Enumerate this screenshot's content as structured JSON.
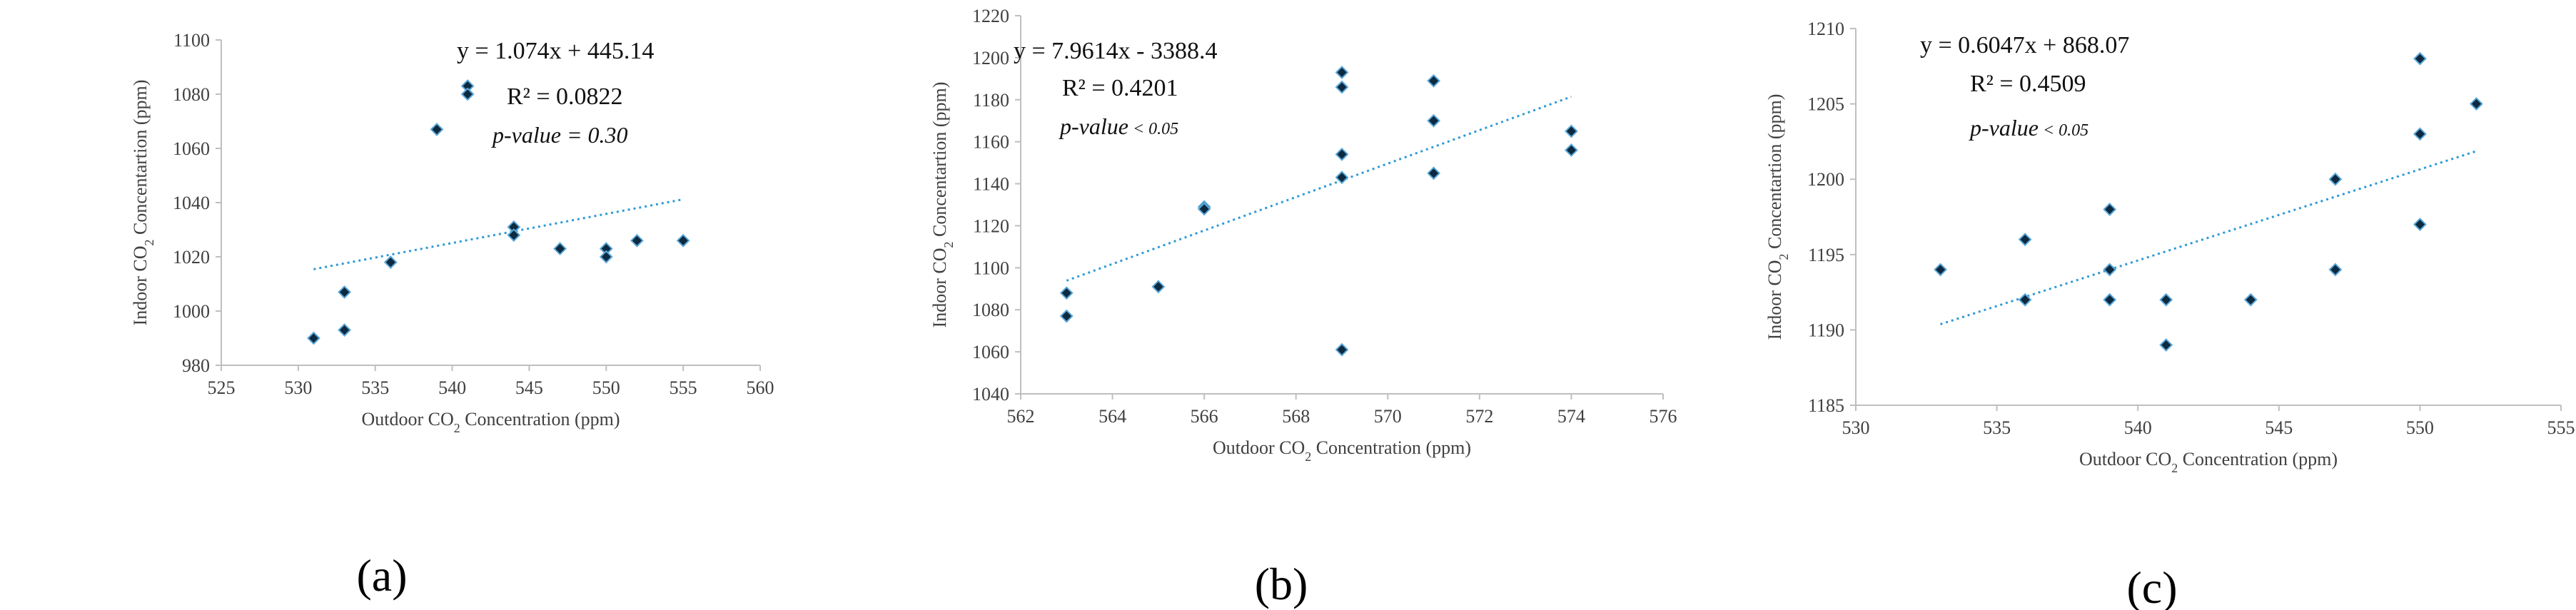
{
  "chart_data": [
    {
      "type": "scatter",
      "panel_label": "(a)",
      "xlabel_parts": [
        "Outdoor CO",
        "2",
        " Concentration (ppm)"
      ],
      "ylabel_parts": [
        "Indoor CO",
        "2",
        " Concentartion (ppm)"
      ],
      "xlim": [
        525,
        560
      ],
      "ylim": [
        980,
        1100
      ],
      "xticks": [
        525,
        530,
        535,
        540,
        545,
        550,
        555,
        560
      ],
      "yticks": [
        980,
        1000,
        1020,
        1040,
        1060,
        1080,
        1100
      ],
      "equation": "y = 1.074x + 445.14",
      "r_squared": "R² = 0.0822",
      "p_value_label": "p-value",
      "p_value_rest": " = 0.30",
      "trendline": {
        "slope": 1.074,
        "intercept": 445.14,
        "x_range": [
          531,
          555
        ]
      },
      "points": [
        {
          "x": 531,
          "y": 990
        },
        {
          "x": 533,
          "y": 1007
        },
        {
          "x": 533,
          "y": 993
        },
        {
          "x": 536,
          "y": 1018
        },
        {
          "x": 539,
          "y": 1067
        },
        {
          "x": 541,
          "y": 1083
        },
        {
          "x": 541,
          "y": 1080
        },
        {
          "x": 544,
          "y": 1031
        },
        {
          "x": 544,
          "y": 1028
        },
        {
          "x": 547,
          "y": 1023
        },
        {
          "x": 550,
          "y": 1023
        },
        {
          "x": 550,
          "y": 1020
        },
        {
          "x": 552,
          "y": 1026
        },
        {
          "x": 555,
          "y": 1026
        }
      ]
    },
    {
      "type": "scatter",
      "panel_label": "(b)",
      "xlabel_parts": [
        "Outdoor CO",
        "2",
        " Concentration (ppm)"
      ],
      "ylabel_parts": [
        "Indoor CO",
        "2",
        " Concentartion (ppm)"
      ],
      "xlim": [
        562,
        576
      ],
      "ylim": [
        1040,
        1220
      ],
      "xticks": [
        562,
        564,
        566,
        568,
        570,
        572,
        574,
        576
      ],
      "yticks": [
        1040,
        1060,
        1080,
        1100,
        1120,
        1140,
        1160,
        1180,
        1200,
        1220
      ],
      "equation": "y = 7.9614x - 3388.4",
      "r_squared": "R² = 0.4201",
      "p_value_label": "p-value",
      "p_value_rest": " < 0.05",
      "trendline": {
        "slope": 7.9614,
        "intercept": -3388.4,
        "x_range": [
          563,
          574
        ]
      },
      "points": [
        {
          "x": 563,
          "y": 1088
        },
        {
          "x": 563,
          "y": 1077
        },
        {
          "x": 565,
          "y": 1091
        },
        {
          "x": 566,
          "y": 1129
        },
        {
          "x": 566,
          "y": 1128
        },
        {
          "x": 569,
          "y": 1193
        },
        {
          "x": 569,
          "y": 1186
        },
        {
          "x": 569,
          "y": 1154
        },
        {
          "x": 569,
          "y": 1143
        },
        {
          "x": 569,
          "y": 1061
        },
        {
          "x": 571,
          "y": 1189
        },
        {
          "x": 571,
          "y": 1170
        },
        {
          "x": 571,
          "y": 1145
        },
        {
          "x": 574,
          "y": 1165
        },
        {
          "x": 574,
          "y": 1156
        }
      ]
    },
    {
      "type": "scatter",
      "panel_label": "(c)",
      "xlabel_parts": [
        "Outdoor CO",
        "2",
        " Concentration (ppm)"
      ],
      "ylabel_parts": [
        "Indoor CO",
        "2",
        " Concentartion (ppm)"
      ],
      "xlim": [
        530,
        555
      ],
      "ylim": [
        1185,
        1210
      ],
      "xticks": [
        530,
        535,
        540,
        545,
        550,
        555
      ],
      "yticks": [
        1185,
        1190,
        1195,
        1200,
        1205,
        1210
      ],
      "equation": "y = 0.6047x + 868.07",
      "r_squared": "R² = 0.4509",
      "p_value_label": "p-value",
      "p_value_rest": " < 0.05",
      "trendline": {
        "slope": 0.6047,
        "intercept": 868.07,
        "x_range": [
          533,
          552
        ]
      },
      "points": [
        {
          "x": 533,
          "y": 1194
        },
        {
          "x": 536,
          "y": 1196
        },
        {
          "x": 536,
          "y": 1192
        },
        {
          "x": 539,
          "y": 1198
        },
        {
          "x": 539,
          "y": 1194
        },
        {
          "x": 539,
          "y": 1192
        },
        {
          "x": 541,
          "y": 1192
        },
        {
          "x": 541,
          "y": 1189
        },
        {
          "x": 544,
          "y": 1192
        },
        {
          "x": 547,
          "y": 1200
        },
        {
          "x": 547,
          "y": 1194
        },
        {
          "x": 550,
          "y": 1208
        },
        {
          "x": 550,
          "y": 1203
        },
        {
          "x": 550,
          "y": 1197
        },
        {
          "x": 552,
          "y": 1205
        }
      ]
    }
  ]
}
